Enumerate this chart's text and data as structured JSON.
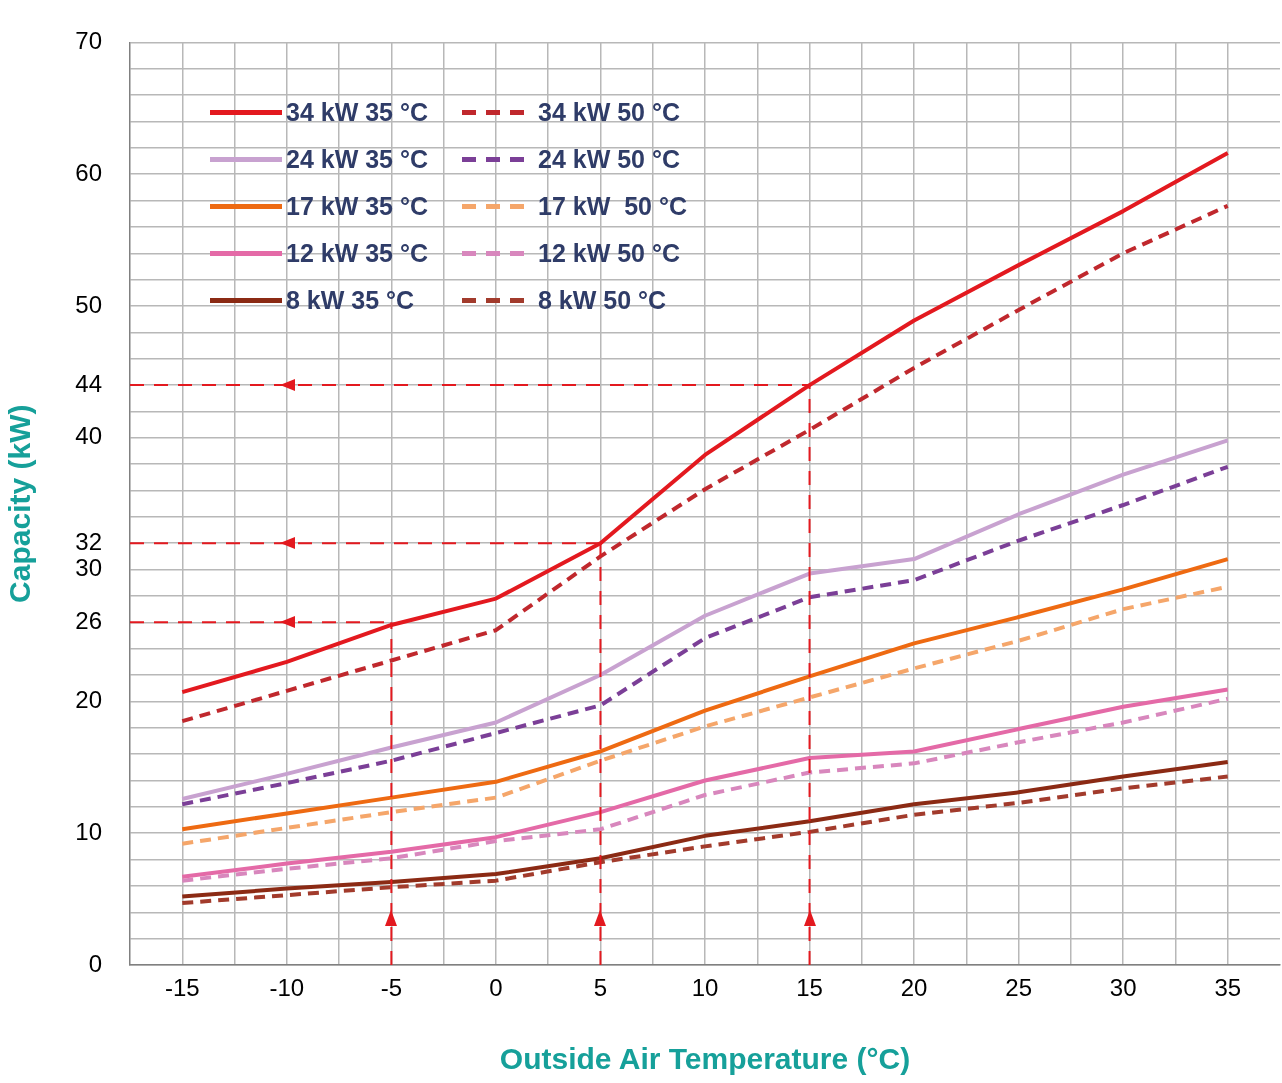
{
  "chart_data": {
    "type": "line",
    "xlabel": "Outside Air Temperature (°C)",
    "ylabel": "Capacity (kW)",
    "x": [
      -15,
      -10,
      -5,
      0,
      5,
      10,
      15,
      20,
      25,
      30,
      35
    ],
    "xlim": [
      -17.5,
      37.5
    ],
    "xticks": [
      -15,
      {
        "value": -12.5,
        "label": null
      },
      -10,
      {
        "value": -7.5,
        "label": null
      },
      -5,
      {
        "value": -2.5,
        "label": null
      },
      0,
      {
        "value": 2.5,
        "label": null
      },
      5,
      {
        "value": 7.5,
        "label": null
      },
      10,
      {
        "value": 12.5,
        "label": null
      },
      15,
      {
        "value": 17.5,
        "label": null
      },
      20,
      {
        "value": 22.5,
        "label": null
      },
      25,
      {
        "value": 27.5,
        "label": null
      },
      30,
      {
        "value": 32.5,
        "label": null
      },
      35
    ],
    "ylim": [
      0,
      70
    ],
    "yticks": [
      0,
      {
        "value": 2,
        "label": null
      },
      {
        "value": 4,
        "label": null
      },
      {
        "value": 6,
        "label": null
      },
      {
        "value": 8,
        "label": null
      },
      10,
      {
        "value": 12,
        "label": null
      },
      {
        "value": 14,
        "label": null
      },
      {
        "value": 16,
        "label": null
      },
      {
        "value": 18,
        "label": null
      },
      20,
      {
        "value": 22,
        "label": null
      },
      {
        "value": 24,
        "label": null
      },
      26,
      {
        "value": 28,
        "label": null
      },
      30,
      32,
      {
        "value": 34,
        "label": null
      },
      {
        "value": 36,
        "label": null
      },
      {
        "value": 38,
        "label": null
      },
      40,
      {
        "value": 42,
        "label": null
      },
      44,
      {
        "value": 46,
        "label": null
      },
      {
        "value": 48,
        "label": null
      },
      50,
      {
        "value": 52,
        "label": null
      },
      {
        "value": 54,
        "label": null
      },
      {
        "value": 56,
        "label": null
      },
      {
        "value": 58,
        "label": null
      },
      60,
      {
        "value": 62,
        "label": null
      },
      {
        "value": 64,
        "label": null
      },
      {
        "value": 66,
        "label": null
      },
      {
        "value": 68,
        "label": null
      },
      70
    ],
    "grid": true,
    "legend": "top left",
    "marker": "none",
    "series": [
      {
        "name": "34 kW 35 °C",
        "color": "#e3191f",
        "line_style": "solid",
        "values": [
          20.7,
          23.0,
          25.8,
          27.8,
          32.0,
          38.7,
          44.0,
          48.9,
          53.1,
          57.2,
          61.6
        ]
      },
      {
        "name": "34 kW 50 °C",
        "color": "#c0282d",
        "line_style": "dashed",
        "values": [
          18.5,
          20.8,
          23.1,
          25.4,
          31.0,
          36.1,
          40.6,
          45.3,
          49.7,
          54.0,
          57.6
        ]
      },
      {
        "name": "24 kW 35 °C",
        "color": "#c8a2d0",
        "line_style": "solid",
        "values": [
          12.6,
          14.5,
          16.5,
          18.4,
          22.0,
          26.5,
          29.7,
          30.8,
          34.2,
          37.2,
          39.8
        ]
      },
      {
        "name": "24 kW 50 °C",
        "color": "#7b3f97",
        "line_style": "dashed",
        "values": [
          12.2,
          13.8,
          15.5,
          17.6,
          19.7,
          24.8,
          27.9,
          29.2,
          32.2,
          34.9,
          37.8
        ]
      },
      {
        "name": "17 kW 35 °C",
        "color": "#ee6a12",
        "line_style": "solid",
        "values": [
          10.3,
          11.5,
          12.7,
          13.9,
          16.2,
          19.3,
          21.9,
          24.4,
          26.4,
          28.5,
          30.8
        ]
      },
      {
        "name": "17 kW  50 °C",
        "color": "#f5a66a",
        "line_style": "dashed",
        "values": [
          9.2,
          10.4,
          11.6,
          12.7,
          15.5,
          18.1,
          20.3,
          22.5,
          24.6,
          27.0,
          28.7
        ]
      },
      {
        "name": "12 kW 35 °C",
        "color": "#e46aa7",
        "line_style": "solid",
        "values": [
          6.7,
          7.7,
          8.6,
          9.7,
          11.6,
          14.0,
          15.7,
          16.2,
          17.9,
          19.6,
          20.9
        ]
      },
      {
        "name": "12 kW 50 °C",
        "color": "#d887bd",
        "line_style": "dashed",
        "values": [
          6.4,
          7.3,
          8.1,
          9.4,
          10.3,
          12.9,
          14.6,
          15.3,
          16.9,
          18.4,
          20.2
        ]
      },
      {
        "name": "8 kW 35 °C",
        "color": "#8b2a14",
        "line_style": "solid",
        "values": [
          5.2,
          5.8,
          6.3,
          6.9,
          8.1,
          9.8,
          10.9,
          12.2,
          13.1,
          14.3,
          15.4
        ]
      },
      {
        "name": "8 kW 50 °C",
        "color": "#a23b2c",
        "line_style": "dashed",
        "values": [
          4.7,
          5.3,
          5.9,
          6.4,
          7.8,
          9.0,
          10.1,
          11.4,
          12.3,
          13.4,
          14.3
        ]
      }
    ],
    "ref_lines": [
      {
        "axis": "y",
        "value": 26,
        "color": "#e3191f",
        "line_style": "dashed"
      },
      {
        "axis": "y",
        "value": 32,
        "color": "#e3191f",
        "line_style": "dashed"
      },
      {
        "axis": "y",
        "value": 44,
        "color": "#e3191f",
        "line_style": "dashed"
      },
      {
        "axis": "x",
        "value": -5,
        "color": "#e3191f",
        "line_style": "dashed"
      },
      {
        "axis": "x",
        "value": 5,
        "color": "#e3191f",
        "line_style": "dashed"
      },
      {
        "axis": "x",
        "value": 15,
        "color": "#e3191f",
        "line_style": "dashed"
      }
    ]
  }
}
